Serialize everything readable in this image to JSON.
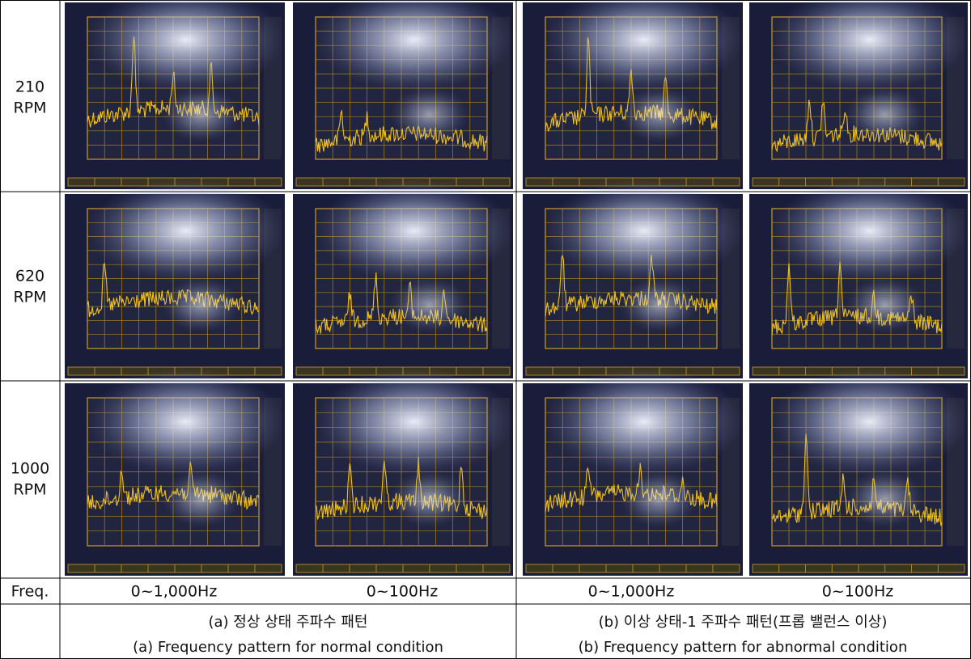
{
  "table": {
    "rows": [
      {
        "label": [
          "210",
          "RPM"
        ]
      },
      {
        "label": [
          "620",
          "RPM"
        ]
      },
      {
        "label": [
          "1000",
          "RPM"
        ]
      }
    ],
    "freq": {
      "label": "Freq.",
      "ranges": [
        "0~1,000Hz",
        "0~100Hz",
        "0~1,000Hz",
        "0~100Hz"
      ]
    },
    "captions": [
      {
        "korean": "(a) 정상 상태 주파수 패턴",
        "english": "(a) Frequency pattern for normal condition"
      },
      {
        "korean": "(b) 이상 상태-1 주파수 패턴(프롭 밸런스 이상)",
        "english": "(b) Frequency pattern for abnormal condition"
      }
    ]
  }
}
